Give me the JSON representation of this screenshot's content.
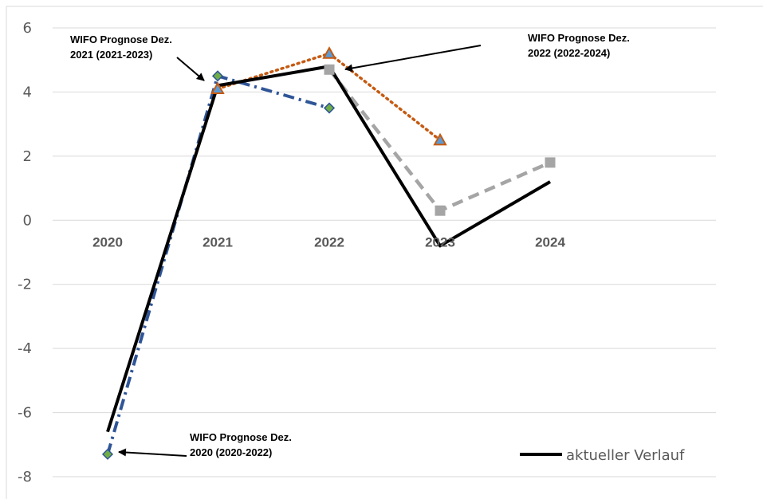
{
  "chart_data": {
    "type": "line",
    "categories": [
      "2020",
      "2021",
      "2022",
      "2023",
      "2024"
    ],
    "ylim": [
      -8,
      6
    ],
    "yticks": [
      6,
      4,
      2,
      0,
      -2,
      -4,
      -6,
      -8
    ],
    "grid": true,
    "series": [
      {
        "name": "aktueller Verlauf",
        "values": [
          -6.6,
          4.2,
          4.8,
          -0.8,
          1.2
        ],
        "color": "#000000",
        "style": "solid",
        "marker": "none"
      },
      {
        "values": [
          -7.3,
          4.5,
          3.5,
          null,
          null
        ],
        "color": "#2F5597",
        "style": "dashdot",
        "marker": "diamond",
        "marker_color": "#70AD47"
      },
      {
        "values": [
          null,
          4.1,
          5.2,
          2.5,
          null
        ],
        "color": "#C55A11",
        "style": "dotted",
        "marker": "triangle",
        "marker_color": "#5B9BD5"
      },
      {
        "values": [
          null,
          null,
          4.7,
          0.3,
          1.8
        ],
        "color": "#A5A5A5",
        "style": "dashed",
        "marker": "square",
        "marker_color": "#A5A5A5"
      }
    ],
    "legend_position": "bottom-right",
    "annotations": [
      {
        "line1": "WIFO Prognose Dez.",
        "line2": "2020 (2020-2022)",
        "target": [
          0,
          -7.3
        ]
      },
      {
        "line1": "WIFO Prognose Dez.",
        "line2": "2021 (2021-2023)",
        "target": [
          1,
          4.5
        ]
      },
      {
        "line1": "WIFO Prognose Dez.",
        "line2": "2022 (2022-2024)",
        "target": [
          2,
          4.8
        ]
      }
    ]
  }
}
